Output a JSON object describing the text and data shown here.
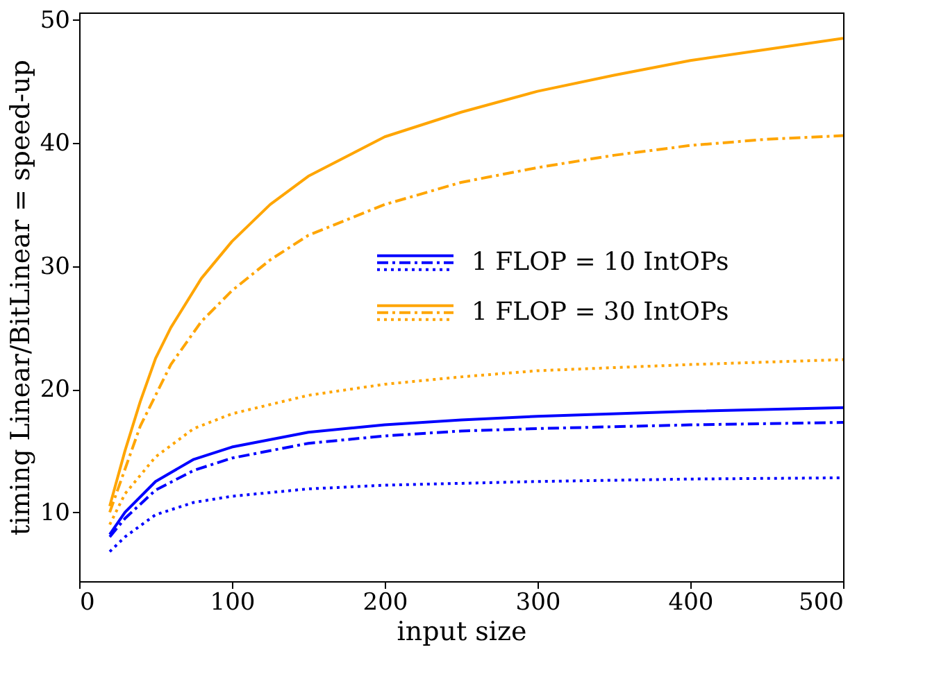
{
  "chart_data": {
    "type": "line",
    "xlabel": "input size",
    "ylabel": "timing Linear/BitLinear = speed-up",
    "xlim": [
      0,
      500
    ],
    "ylim": [
      4.4,
      50.6
    ],
    "xticks": [
      0,
      100,
      200,
      300,
      400,
      500
    ],
    "yticks": [
      10,
      20,
      30,
      40,
      50
    ],
    "grid": false,
    "legend": "right",
    "marker": "none",
    "series": [
      {
        "name": "1 FLOP = 10 IntOPs",
        "color": "#0000ff",
        "line_style": "solid",
        "x": [
          20,
          30,
          50,
          75,
          100,
          150,
          200,
          250,
          300,
          400,
          500
        ],
        "values": [
          8.2,
          10,
          12.5,
          14.3,
          15.3,
          16.5,
          17.1,
          17.5,
          17.8,
          18.2,
          18.5
        ]
      },
      {
        "color": "#0000ff",
        "line_style": "dashed",
        "x": [
          20,
          30,
          50,
          75,
          100,
          150,
          200,
          250,
          300,
          400,
          500
        ],
        "values": [
          8,
          9.5,
          11.8,
          13.4,
          14.4,
          15.6,
          16.2,
          16.6,
          16.8,
          17.1,
          17.3
        ]
      },
      {
        "color": "#0000ff",
        "line_style": "dotted",
        "x": [
          20,
          30,
          50,
          75,
          100,
          150,
          200,
          300,
          400,
          500
        ],
        "values": [
          6.8,
          8,
          9.8,
          10.8,
          11.3,
          11.9,
          12.2,
          12.5,
          12.7,
          12.8
        ]
      },
      {
        "name": "1 FLOP = 30 IntOPs",
        "color": "#ffa500",
        "line_style": "solid",
        "x": [
          20,
          30,
          40,
          50,
          60,
          80,
          100,
          125,
          150,
          200,
          250,
          300,
          350,
          400,
          450,
          500
        ],
        "values": [
          10.5,
          15,
          19,
          22.5,
          25,
          29,
          32,
          35,
          37.3,
          40.5,
          42.5,
          44.2,
          45.5,
          46.7,
          47.6,
          48.5
        ]
      },
      {
        "color": "#ffa500",
        "line_style": "dashed",
        "x": [
          20,
          30,
          40,
          50,
          60,
          80,
          100,
          125,
          150,
          200,
          250,
          300,
          350,
          400,
          450,
          500
        ],
        "values": [
          10,
          13.5,
          17,
          19.5,
          22,
          25.5,
          28,
          30.5,
          32.5,
          35,
          36.8,
          38,
          39,
          39.8,
          40.3,
          40.6
        ]
      },
      {
        "color": "#ffa500",
        "line_style": "dotted",
        "x": [
          20,
          30,
          50,
          75,
          100,
          150,
          200,
          250,
          300,
          400,
          500
        ],
        "values": [
          9,
          11.5,
          14.5,
          16.8,
          18,
          19.5,
          20.4,
          21,
          21.5,
          22,
          22.4
        ]
      }
    ]
  }
}
